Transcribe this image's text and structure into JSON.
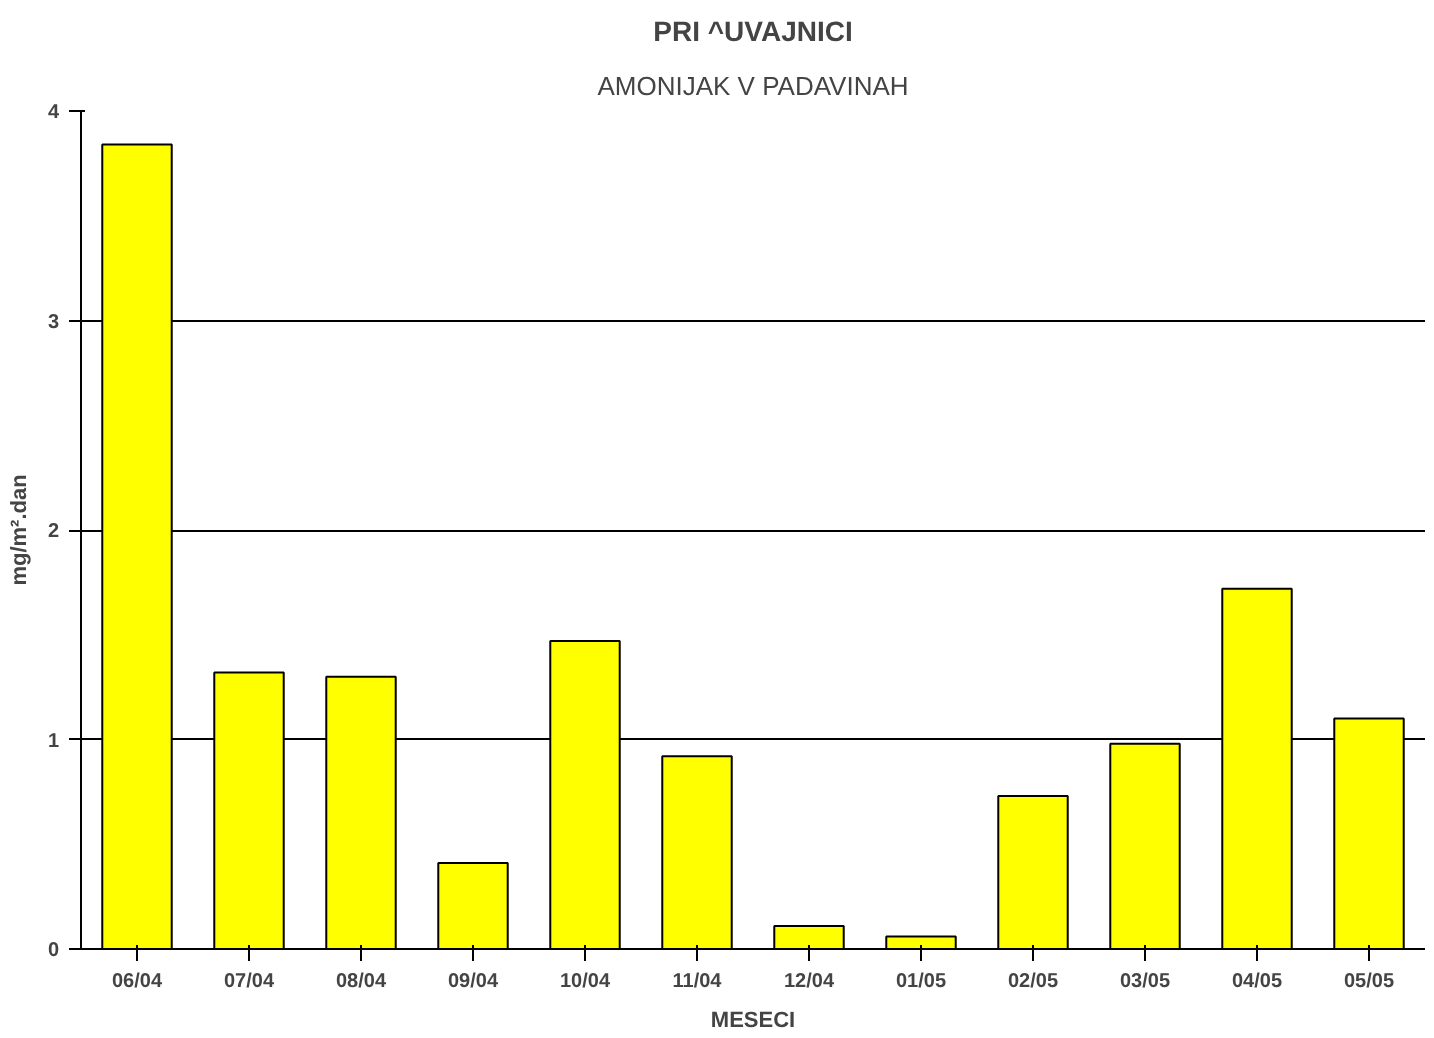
{
  "chart_data": {
    "type": "bar",
    "title": "PRI ^UVAJNICI",
    "subtitle": "AMONIJAK V PADAVINAH",
    "xlabel": "MESECI",
    "ylabel": "mg/m².dan",
    "categories": [
      "06/04",
      "07/04",
      "08/04",
      "09/04",
      "10/04",
      "11/04",
      "12/04",
      "01/05",
      "02/05",
      "03/05",
      "04/05",
      "05/05"
    ],
    "values": [
      3.84,
      1.32,
      1.3,
      0.41,
      1.47,
      0.92,
      0.11,
      0.06,
      0.73,
      0.98,
      1.72,
      1.1
    ],
    "color": "#ffff00",
    "ylim": [
      0,
      4
    ],
    "yticks": [
      0,
      1,
      2,
      3,
      4
    ],
    "grid": "y"
  }
}
